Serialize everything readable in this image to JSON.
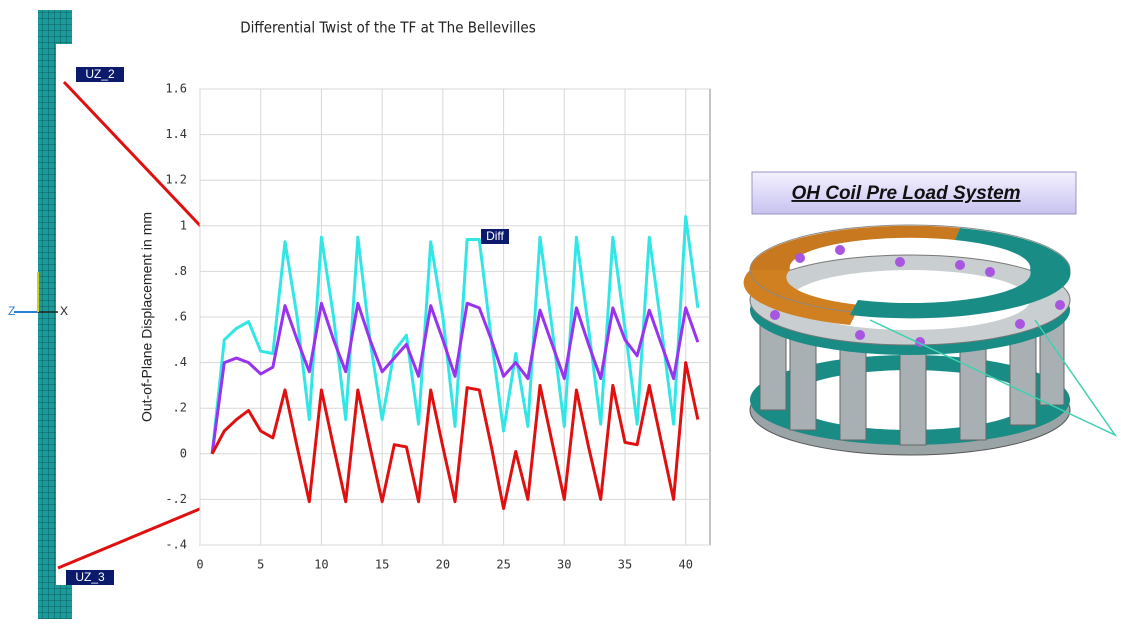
{
  "chart_data": {
    "type": "line",
    "title": "Differential Twist of the TF at The Bellevilles",
    "y_label": "Out-of-Plane Displacement in mm",
    "annotation": "Diff",
    "x": [
      1,
      2,
      3,
      4,
      5,
      6,
      7,
      8,
      9,
      10,
      11,
      12,
      13,
      14,
      15,
      16,
      17,
      18,
      19,
      20,
      21,
      22,
      23,
      24,
      25,
      26,
      27,
      28,
      29,
      30,
      31,
      32,
      33,
      34,
      35,
      36,
      37,
      38,
      39,
      40,
      41
    ],
    "series": [
      {
        "color": "#33e6e6",
        "values": [
          0,
          0.5,
          0.55,
          0.58,
          0.45,
          0.44,
          0.93,
          0.6,
          0.15,
          0.95,
          0.6,
          0.15,
          0.95,
          0.5,
          0.15,
          0.45,
          0.52,
          0.13,
          0.93,
          0.6,
          0.12,
          0.94,
          0.94,
          0.5,
          0.1,
          0.44,
          0.12,
          0.95,
          0.55,
          0.12,
          0.95,
          0.55,
          0.13,
          0.95,
          0.55,
          0.13,
          0.95,
          0.55,
          0.13,
          1.04,
          0.64
        ]
      },
      {
        "color": "#9933ee",
        "values": [
          0,
          0.4,
          0.42,
          0.4,
          0.35,
          0.38,
          0.65,
          0.5,
          0.36,
          0.66,
          0.5,
          0.36,
          0.66,
          0.5,
          0.36,
          0.42,
          0.48,
          0.34,
          0.65,
          0.5,
          0.34,
          0.66,
          0.64,
          0.5,
          0.34,
          0.4,
          0.33,
          0.63,
          0.48,
          0.33,
          0.64,
          0.48,
          0.33,
          0.64,
          0.5,
          0.43,
          0.63,
          0.48,
          0.33,
          0.64,
          0.49
        ]
      },
      {
        "color": "#e01010",
        "values": [
          0,
          0.1,
          0.15,
          0.19,
          0.1,
          0.07,
          0.28,
          0.03,
          -0.21,
          0.28,
          0.03,
          -0.21,
          0.28,
          0.03,
          -0.21,
          0.04,
          0.03,
          -0.21,
          0.28,
          0.03,
          -0.21,
          0.29,
          0.28,
          0.03,
          -0.24,
          0.01,
          -0.2,
          0.3,
          0.05,
          -0.2,
          0.28,
          0.03,
          -0.2,
          0.3,
          0.05,
          0.04,
          0.3,
          0.05,
          -0.2,
          0.4,
          0.15
        ]
      }
    ],
    "xlim": [
      0,
      42
    ],
    "xticks": [
      0,
      5,
      10,
      15,
      20,
      25,
      30,
      35,
      40
    ],
    "ylim": [
      -0.4,
      1.6
    ],
    "yticks": [
      {
        "value": -0.4,
        "label": "-.4"
      },
      {
        "value": -0.2,
        "label": "-.2"
      },
      0,
      {
        "value": 0.2,
        "label": ".2"
      },
      {
        "value": 0.4,
        "label": ".4"
      },
      {
        "value": 0.6,
        "label": ".6"
      },
      {
        "value": 0.8,
        "label": ".8"
      },
      1,
      1.2,
      1.4,
      1.6
    ],
    "grid": true
  },
  "labels": {
    "node_top": "UZ_2",
    "node_bottom": "UZ_3",
    "axis_z": "Z",
    "axis_x": "X"
  },
  "model": {
    "title": "OH Coil Pre Load System"
  }
}
